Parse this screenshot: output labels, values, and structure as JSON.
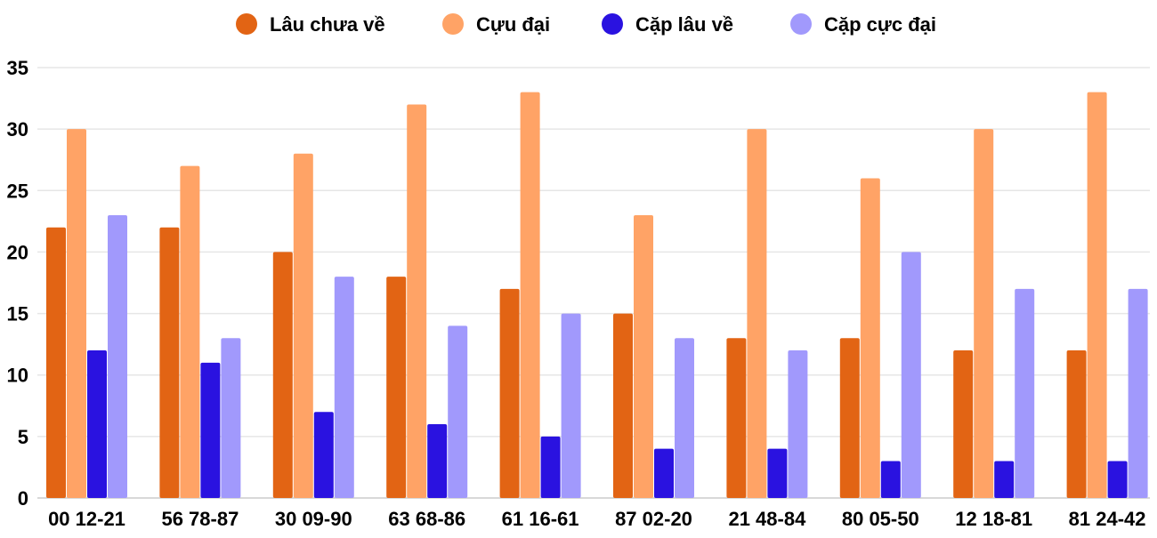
{
  "chart_data": {
    "type": "bar",
    "title": "",
    "xlabel": "",
    "ylabel": "",
    "ylim": [
      0,
      35
    ],
    "yticks": [
      0,
      5,
      10,
      15,
      20,
      25,
      30,
      35
    ],
    "grid": true,
    "legend_position": "top",
    "categories": [
      "00 12-21",
      "56 78-87",
      "30 09-90",
      "63 68-86",
      "61 16-61",
      "87 02-20",
      "21 48-84",
      "80 05-50",
      "12 18-81",
      "81 24-42"
    ],
    "series": [
      {
        "name": "Lâu chưa về",
        "color": "#e26414",
        "values": [
          22,
          22,
          20,
          18,
          17,
          15,
          13,
          13,
          12,
          12
        ]
      },
      {
        "name": "Cựu đại",
        "color": "#ffa366",
        "values": [
          30,
          27,
          28,
          32,
          33,
          23,
          30,
          26,
          30,
          33
        ]
      },
      {
        "name": "Cặp lâu về",
        "color": "#2a12e0",
        "values": [
          12,
          11,
          7,
          6,
          5,
          4,
          4,
          3,
          3,
          3
        ]
      },
      {
        "name": "Cặp cực đại",
        "color": "#a199fc",
        "values": [
          23,
          13,
          18,
          14,
          15,
          13,
          12,
          20,
          17,
          17
        ]
      }
    ]
  }
}
